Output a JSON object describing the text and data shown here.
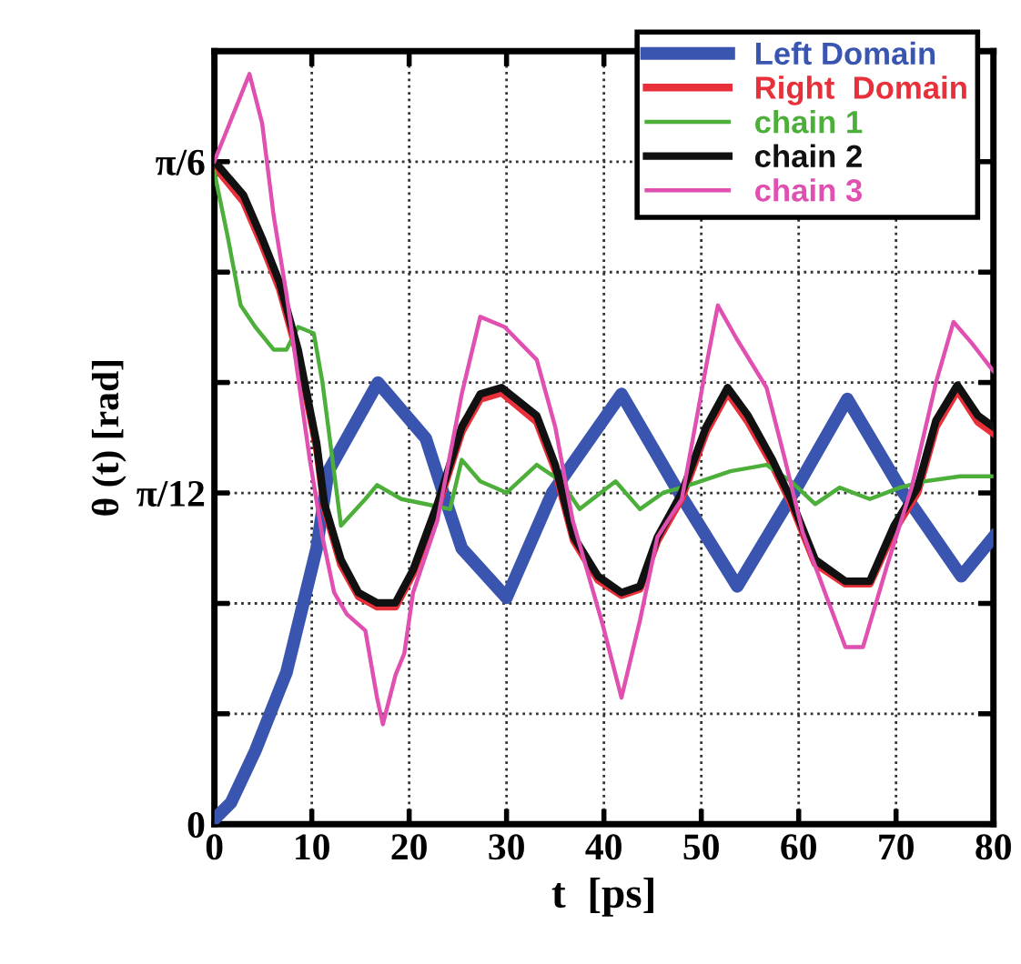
{
  "chart_data": {
    "type": "line",
    "xlabel": "t  [ps]",
    "ylabel": "θ (t) [rad]",
    "xlim": [
      0,
      80
    ],
    "xticks": [
      0,
      10,
      20,
      30,
      40,
      50,
      60,
      70,
      80
    ],
    "ylim": [
      0,
      0.611
    ],
    "yticks": [
      0,
      {
        "value": 0.0873,
        "label": null
      },
      {
        "value": 0.1745,
        "label": null
      },
      {
        "value": 0.2618,
        "label": "π/12"
      },
      {
        "value": 0.3491,
        "label": null
      },
      {
        "value": 0.4363,
        "label": null
      },
      {
        "value": 0.5236,
        "label": "π/6"
      }
    ],
    "grid": true,
    "legend": "top right",
    "line_style": "solid",
    "marker": "none",
    "series": [
      {
        "name": "Left Domain",
        "color": "#3a55b0",
        "x": [
          0,
          1.7,
          4.2,
          7.4,
          10.5,
          11.7,
          16.8,
          21.7,
          23.5,
          25.4,
          30,
          34.7,
          41.8,
          47.4,
          53.7,
          59.8,
          65,
          70.4,
          76.7,
          80
        ],
        "values": [
          0.004,
          0.017,
          0.058,
          0.12,
          0.218,
          0.279,
          0.349,
          0.305,
          0.262,
          0.218,
          0.179,
          0.262,
          0.34,
          0.266,
          0.188,
          0.266,
          0.336,
          0.266,
          0.196,
          0.227
        ]
      },
      {
        "name": "Right  Domain",
        "color": "#e8303a",
        "x": [
          0,
          3,
          4.9,
          6.7,
          8.6,
          10.5,
          11.3,
          13,
          14.8,
          16.7,
          18.6,
          20.4,
          22.9,
          25.4,
          27.3,
          29.5,
          33.1,
          35,
          36.9,
          39.4,
          41.8,
          43.7,
          45.5,
          48,
          50.5,
          52.7,
          54.8,
          57.3,
          59.2,
          61.7,
          64.8,
          67.3,
          69.8,
          72.2,
          74.1,
          76.3,
          78.4,
          80
        ],
        "values": [
          0.52,
          0.492,
          0.458,
          0.423,
          0.37,
          0.298,
          0.25,
          0.205,
          0.18,
          0.172,
          0.172,
          0.198,
          0.25,
          0.31,
          0.336,
          0.341,
          0.318,
          0.28,
          0.224,
          0.193,
          0.181,
          0.186,
          0.224,
          0.258,
          0.31,
          0.341,
          0.318,
          0.284,
          0.254,
          0.206,
          0.19,
          0.19,
          0.232,
          0.262,
          0.314,
          0.343,
          0.318,
          0.309
        ]
      },
      {
        "name": "chain 1",
        "color": "#4caf3a",
        "x": [
          0,
          1.4,
          2.7,
          4.2,
          6.1,
          7.4,
          8.6,
          10.2,
          11.1,
          13,
          15.5,
          16.7,
          19.2,
          21.7,
          24.2,
          25.4,
          27.3,
          30,
          33.1,
          35.6,
          37.5,
          41.2,
          43.7,
          46.1,
          48,
          53,
          56.7,
          59.2,
          61.7,
          64.2,
          67.3,
          70.4,
          72.9,
          76.6,
          80
        ],
        "values": [
          0.515,
          0.463,
          0.41,
          0.393,
          0.375,
          0.375,
          0.393,
          0.388,
          0.349,
          0.236,
          0.257,
          0.268,
          0.257,
          0.253,
          0.249,
          0.288,
          0.271,
          0.262,
          0.284,
          0.271,
          0.249,
          0.271,
          0.249,
          0.262,
          0.266,
          0.279,
          0.284,
          0.271,
          0.253,
          0.266,
          0.257,
          0.266,
          0.271,
          0.275,
          0.275
        ]
      },
      {
        "name": "chain 2",
        "color": "#111111",
        "x": [
          0,
          3,
          4.9,
          6.7,
          8.6,
          10.5,
          11.3,
          13,
          14.8,
          16.7,
          18.6,
          20.4,
          22.9,
          25.4,
          27.3,
          29.5,
          33.1,
          35,
          36.9,
          39.4,
          41.8,
          43.7,
          45.5,
          48,
          50.5,
          52.7,
          54.8,
          57.3,
          59.2,
          61.7,
          64.8,
          67.3,
          69.8,
          72.2,
          74.1,
          76.3,
          78.4,
          80
        ],
        "values": [
          0.524,
          0.497,
          0.463,
          0.428,
          0.375,
          0.301,
          0.253,
          0.209,
          0.183,
          0.175,
          0.175,
          0.201,
          0.253,
          0.314,
          0.34,
          0.345,
          0.323,
          0.284,
          0.227,
          0.196,
          0.183,
          0.188,
          0.227,
          0.262,
          0.314,
          0.345,
          0.323,
          0.288,
          0.257,
          0.209,
          0.192,
          0.192,
          0.236,
          0.266,
          0.319,
          0.347,
          0.323,
          0.314
        ]
      },
      {
        "name": "chain 3",
        "color": "#e050b0",
        "x": [
          0,
          1.1,
          3.6,
          4.9,
          6.1,
          7.4,
          8.6,
          9.8,
          11.1,
          12.3,
          13.6,
          15.5,
          16.7,
          17.3,
          18.6,
          19.5,
          20.4,
          22.9,
          25.4,
          27.3,
          29.8,
          33.1,
          35,
          36.8,
          39.9,
          41.8,
          43.7,
          45.5,
          48,
          50.5,
          51.7,
          53.6,
          56.7,
          58.6,
          60.4,
          62.9,
          64.8,
          66.6,
          69.1,
          71.6,
          74.1,
          75.9,
          77.8,
          80
        ],
        "values": [
          0.524,
          0.545,
          0.593,
          0.554,
          0.48,
          0.419,
          0.353,
          0.288,
          0.227,
          0.183,
          0.166,
          0.153,
          0.1,
          0.079,
          0.118,
          0.135,
          0.183,
          0.24,
          0.34,
          0.401,
          0.393,
          0.367,
          0.314,
          0.24,
          0.157,
          0.1,
          0.161,
          0.227,
          0.257,
          0.362,
          0.41,
          0.384,
          0.345,
          0.288,
          0.231,
          0.179,
          0.14,
          0.14,
          0.205,
          0.266,
          0.349,
          0.397,
          0.38,
          0.358
        ]
      }
    ]
  }
}
